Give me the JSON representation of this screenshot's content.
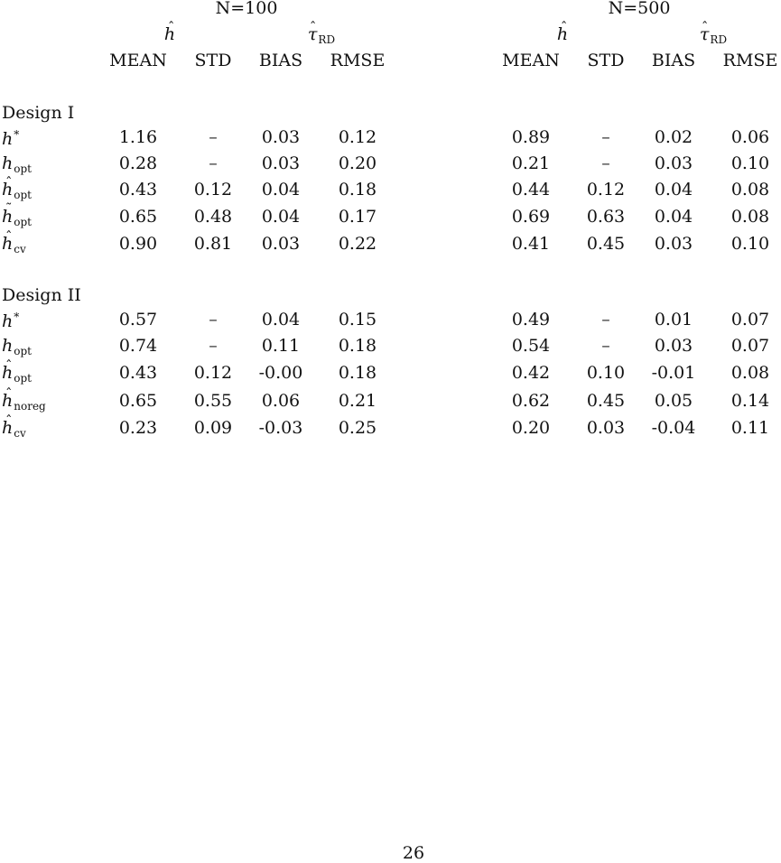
{
  "groups": [
    {
      "label": "N=100",
      "estimator_label": "h",
      "estimate_label": "τ",
      "estimate_sub": "RD"
    },
    {
      "label": "N=500",
      "estimator_label": "h",
      "estimate_label": "τ",
      "estimate_sub": "RD"
    }
  ],
  "columns": [
    "MEAN",
    "STD",
    "BIAS",
    "RMSE"
  ],
  "designs": [
    {
      "label": "Design I",
      "rows": [
        {
          "sym": "h",
          "accent": "",
          "sub": "",
          "sup": "*",
          "values": [
            "1.16",
            "–",
            "0.03",
            "0.12",
            "0.89",
            "–",
            "0.02",
            "0.06"
          ]
        },
        {
          "sym": "h",
          "accent": "",
          "sub": "opt",
          "sup": "",
          "values": [
            "0.28",
            "–",
            "0.03",
            "0.20",
            "0.21",
            "–",
            "0.03",
            "0.10"
          ]
        },
        {
          "sym": "h",
          "accent": "hat",
          "sub": "opt",
          "sup": "",
          "values": [
            "0.43",
            "0.12",
            "0.04",
            "0.18",
            "0.44",
            "0.12",
            "0.04",
            "0.08"
          ]
        },
        {
          "sym": "h",
          "accent": "tilde",
          "sub": "opt",
          "sup": "",
          "values": [
            "0.65",
            "0.48",
            "0.04",
            "0.17",
            "0.69",
            "0.63",
            "0.04",
            "0.08"
          ]
        },
        {
          "sym": "h",
          "accent": "hat",
          "sub": "cv",
          "sup": "",
          "values": [
            "0.90",
            "0.81",
            "0.03",
            "0.22",
            "0.41",
            "0.45",
            "0.03",
            "0.10"
          ]
        }
      ]
    },
    {
      "label": "Design II",
      "rows": [
        {
          "sym": "h",
          "accent": "",
          "sub": "",
          "sup": "*",
          "values": [
            "0.57",
            "–",
            "0.04",
            "0.15",
            "0.49",
            "–",
            "0.01",
            "0.07"
          ]
        },
        {
          "sym": "h",
          "accent": "",
          "sub": "opt",
          "sup": "",
          "values": [
            "0.74",
            "–",
            "0.11",
            "0.18",
            "0.54",
            "–",
            "0.03",
            "0.07"
          ]
        },
        {
          "sym": "h",
          "accent": "hat",
          "sub": "opt",
          "sup": "",
          "values": [
            "0.43",
            "0.12",
            "-0.00",
            "0.18",
            "0.42",
            "0.10",
            "-0.01",
            "0.08"
          ]
        },
        {
          "sym": "h",
          "accent": "hat",
          "sub": "noreg",
          "sup": "",
          "values": [
            "0.65",
            "0.55",
            "0.06",
            "0.21",
            "0.62",
            "0.45",
            "0.05",
            "0.14"
          ]
        },
        {
          "sym": "h",
          "accent": "hat",
          "sub": "cv",
          "sup": "",
          "values": [
            "0.23",
            "0.09",
            "-0.03",
            "0.25",
            "0.20",
            "0.03",
            "-0.04",
            "0.11"
          ]
        }
      ]
    }
  ],
  "page_number": "26"
}
